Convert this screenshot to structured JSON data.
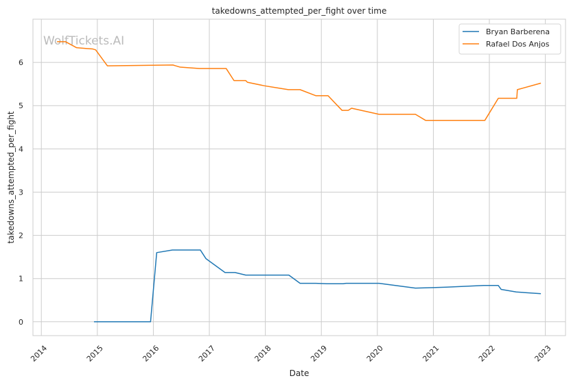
{
  "chart_data": {
    "type": "line",
    "title": "takedowns_attempted_per_fight over time",
    "xlabel": "Date",
    "ylabel": "takedowns_attempted_per_fight",
    "xlim": [
      2013.85,
      2023.36
    ],
    "ylim": [
      -0.32,
      7.0
    ],
    "xticks": [
      2014,
      2015,
      2016,
      2017,
      2018,
      2019,
      2020,
      2021,
      2022,
      2023
    ],
    "xtick_labels": [
      "2014",
      "2015",
      "2016",
      "2017",
      "2018",
      "2019",
      "2020",
      "2021",
      "2022",
      "2023"
    ],
    "yticks": [
      0,
      1,
      2,
      3,
      4,
      5,
      6
    ],
    "ytick_labels": [
      "0",
      "1",
      "2",
      "3",
      "4",
      "5",
      "6"
    ],
    "grid": true,
    "legend_position": "top-right",
    "watermark": "WolfTickets.AI",
    "series": [
      {
        "name": "Bryan Barberena",
        "color": "#1f77b4",
        "x": [
          2014.94,
          2015.95,
          2016.06,
          2016.34,
          2016.84,
          2016.94,
          2017.28,
          2017.46,
          2017.65,
          2018.42,
          2018.62,
          2018.9,
          2019.1,
          2019.39,
          2019.44,
          2020.03,
          2020.68,
          2021.23,
          2021.9,
          2022.16,
          2022.21,
          2022.48,
          2022.92
        ],
        "y": [
          0,
          0,
          1.6,
          1.66,
          1.66,
          1.46,
          1.14,
          1.14,
          1.08,
          1.08,
          0.89,
          0.89,
          0.88,
          0.88,
          0.89,
          0.89,
          0.78,
          0.8,
          0.84,
          0.84,
          0.75,
          0.69,
          0.65
        ]
      },
      {
        "name": "Rafael Dos Anjos",
        "color": "#ff7f0e",
        "x": [
          2014.28,
          2014.43,
          2014.63,
          2014.92,
          2014.97,
          2015.18,
          2016.35,
          2016.48,
          2016.82,
          2017.3,
          2017.44,
          2017.65,
          2017.68,
          2017.98,
          2018.41,
          2018.62,
          2018.9,
          2019.12,
          2019.37,
          2019.48,
          2019.54,
          2020.03,
          2020.68,
          2020.86,
          2021.92,
          2022.16,
          2022.49,
          2022.5,
          2022.92
        ],
        "y": [
          6.48,
          6.48,
          6.34,
          6.31,
          6.29,
          5.92,
          5.94,
          5.89,
          5.86,
          5.86,
          5.58,
          5.58,
          5.54,
          5.46,
          5.37,
          5.37,
          5.23,
          5.23,
          4.89,
          4.89,
          4.94,
          4.8,
          4.8,
          4.66,
          4.66,
          5.17,
          5.17,
          5.37,
          5.52
        ]
      }
    ]
  }
}
